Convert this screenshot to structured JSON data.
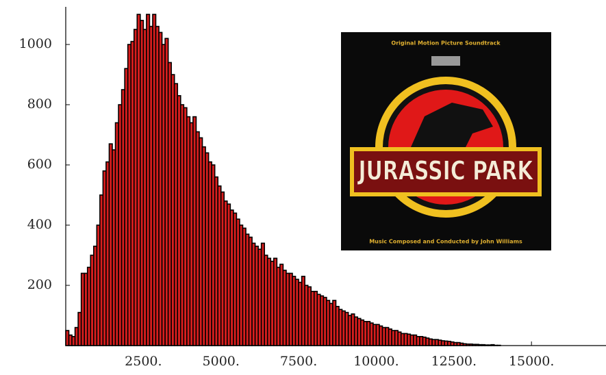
{
  "chart_data": {
    "type": "histogram",
    "bins": [
      0,
      100,
      200,
      300,
      400,
      500,
      600,
      700,
      800,
      900,
      1000,
      1100,
      1200,
      1300,
      1400,
      1500,
      1600,
      1700,
      1800,
      1900,
      2000,
      2100,
      2200,
      2300,
      2400,
      2500,
      2600,
      2700,
      2800,
      2900,
      3000,
      3100,
      3200,
      3300,
      3400,
      3500,
      3600,
      3700,
      3800,
      3900,
      4000,
      4100,
      4200,
      4300,
      4400,
      4500,
      4600,
      4700,
      4800,
      4900,
      5000,
      5100,
      5200,
      5300,
      5400,
      5500,
      5600,
      5700,
      5800,
      5900,
      6000,
      6100,
      6200,
      6300,
      6400,
      6500,
      6600,
      6700,
      6800,
      6900,
      7000,
      7100,
      7200,
      7300,
      7400,
      7500,
      7600,
      7700,
      7800,
      7900,
      8000,
      8100,
      8200,
      8300,
      8400,
      8500,
      8600,
      8700,
      8800,
      8900,
      9000,
      9100,
      9200,
      9300,
      9400,
      9500,
      9600,
      9700,
      9800,
      9900,
      10000,
      10100,
      10200,
      10300,
      10400,
      10500,
      10600,
      10700,
      10800,
      10900,
      11000,
      11100,
      11200,
      11300,
      11400,
      11500,
      11600,
      11700,
      11800,
      11900,
      12000,
      12100,
      12200,
      12300,
      12400,
      12500,
      12600,
      12700,
      12800,
      12900,
      13000,
      13100,
      13200,
      13300,
      13400,
      13500,
      13600,
      13700,
      13800,
      13900,
      14000
    ],
    "values": [
      50,
      35,
      30,
      60,
      110,
      240,
      240,
      260,
      300,
      330,
      400,
      500,
      580,
      610,
      670,
      650,
      740,
      800,
      850,
      920,
      1000,
      1010,
      1050,
      1100,
      1080,
      1050,
      1100,
      1060,
      1100,
      1060,
      1040,
      1000,
      1020,
      940,
      900,
      870,
      830,
      800,
      790,
      760,
      740,
      760,
      710,
      690,
      660,
      640,
      610,
      600,
      560,
      530,
      510,
      480,
      470,
      450,
      440,
      420,
      400,
      390,
      370,
      360,
      340,
      330,
      320,
      340,
      300,
      290,
      280,
      290,
      260,
      270,
      250,
      240,
      240,
      230,
      220,
      210,
      230,
      200,
      195,
      180,
      180,
      170,
      165,
      160,
      150,
      140,
      150,
      130,
      120,
      115,
      110,
      100,
      105,
      95,
      90,
      85,
      80,
      80,
      75,
      70,
      70,
      65,
      60,
      60,
      55,
      50,
      50,
      45,
      40,
      40,
      38,
      35,
      35,
      30,
      30,
      28,
      25,
      22,
      20,
      20,
      18,
      16,
      15,
      14,
      12,
      10,
      10,
      8,
      6,
      5,
      5,
      4,
      4,
      3,
      3,
      2,
      2,
      3,
      1,
      1
    ],
    "color": "#d81e1e",
    "edgecolor": "#000000",
    "xlim": [
      0,
      17400
    ],
    "xticks": [
      {
        "value": 2500,
        "label": "2500."
      },
      {
        "value": 5000,
        "label": "5000."
      },
      {
        "value": 7500,
        "label": "7500."
      },
      {
        "value": 10000,
        "label": "10000."
      },
      {
        "value": 12500,
        "label": "12500."
      },
      {
        "value": 15000,
        "label": "15000."
      }
    ],
    "ylim": [
      0,
      1125
    ],
    "yticks": [
      200,
      400,
      600,
      800,
      1000
    ],
    "inset": {
      "top_text": "Original Motion Picture Soundtrack",
      "title": "JURASSIC PARK",
      "bottom_text": "Music Composed and Conducted by John Williams"
    }
  }
}
